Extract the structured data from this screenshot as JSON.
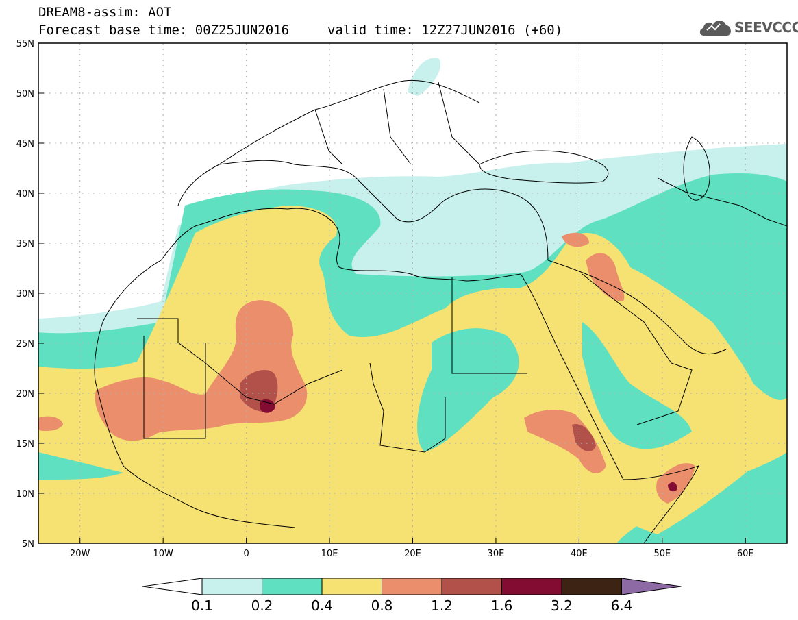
{
  "header": {
    "model_title": "DREAM8-assim: AOT",
    "base_time": "Forecast base time: 00Z25JUN2016",
    "valid_time": "valid time: 12Z27JUN2016 (+60)"
  },
  "logo": {
    "icon": "cloud-icon",
    "text": "SEEVCCC"
  },
  "axes": {
    "lat_labels": [
      "55N",
      "50N",
      "45N",
      "40N",
      "35N",
      "30N",
      "25N",
      "20N",
      "15N",
      "10N",
      "5N"
    ],
    "lon_labels": [
      "20W",
      "10W",
      "0",
      "10E",
      "20E",
      "30E",
      "40E",
      "50E",
      "60E"
    ],
    "lat_range": [
      5,
      55
    ],
    "lon_range": [
      -25,
      65
    ]
  },
  "colorbar": {
    "levels": [
      "0.1",
      "0.2",
      "0.4",
      "0.8",
      "1.2",
      "1.6",
      "3.2",
      "6.4"
    ],
    "colors": [
      "#c8f0ec",
      "#5fe0c0",
      "#f5e273",
      "#ea8e6c",
      "#b2504a",
      "#820c32",
      "#3d2313",
      "#8e6aa4"
    ]
  }
}
